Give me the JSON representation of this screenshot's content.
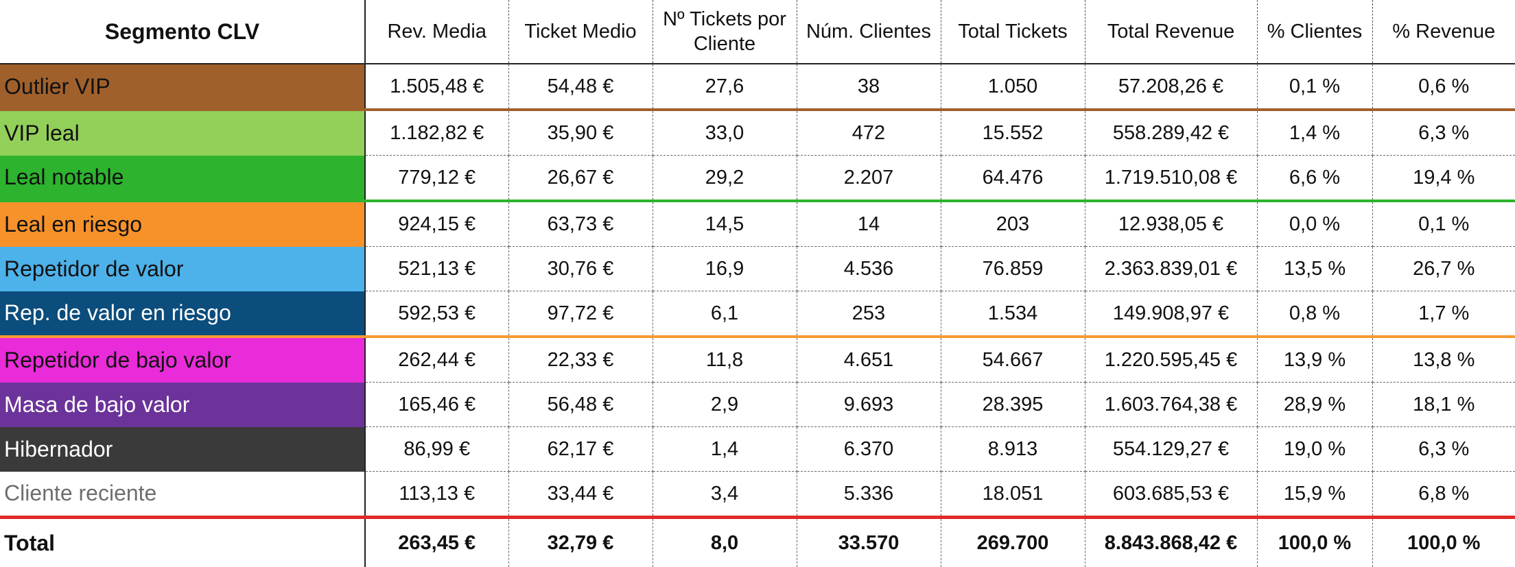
{
  "headers": [
    "Segmento CLV",
    "Rev. Media",
    "Ticket Medio",
    "Nº Tickets por Cliente",
    "Núm. Clientes",
    "Total Tickets",
    "Total Revenue",
    "% Clientes",
    "% Revenue"
  ],
  "rows": [
    {
      "segment": "Outlier VIP",
      "bg": "#a0602c",
      "fg": "#111111",
      "sep": "brown",
      "values": [
        "1.505,48 €",
        "54,48 €",
        "27,6",
        "38",
        "1.050",
        "57.208,26 €",
        "0,1 %",
        "0,6 %"
      ]
    },
    {
      "segment": "VIP leal",
      "bg": "#92d05a",
      "fg": "#111111",
      "sep": "",
      "values": [
        "1.182,82 €",
        "35,90 €",
        "33,0",
        "472",
        "15.552",
        "558.289,42 €",
        "1,4 %",
        "6,3 %"
      ]
    },
    {
      "segment": "Leal notable",
      "bg": "#2db32d",
      "fg": "#111111",
      "sep": "green",
      "values": [
        "779,12 €",
        "26,67 €",
        "29,2",
        "2.207",
        "64.476",
        "1.719.510,08 €",
        "6,6 %",
        "19,4 %"
      ]
    },
    {
      "segment": "Leal en riesgo",
      "bg": "#f7922b",
      "fg": "#111111",
      "sep": "",
      "values": [
        "924,15 €",
        "63,73 €",
        "14,5",
        "14",
        "203",
        "12.938,05 €",
        "0,0 %",
        "0,1 %"
      ]
    },
    {
      "segment": "Repetidor de valor",
      "bg": "#4db1ea",
      "fg": "#111111",
      "sep": "",
      "values": [
        "521,13 €",
        "30,76 €",
        "16,9",
        "4.536",
        "76.859",
        "2.363.839,01 €",
        "13,5 %",
        "26,7 %"
      ]
    },
    {
      "segment": "Rep. de valor en riesgo",
      "bg": "#0b4d7c",
      "fg": "#ffffff",
      "sep": "orange",
      "values": [
        "592,53 €",
        "97,72 €",
        "6,1",
        "253",
        "1.534",
        "149.908,97 €",
        "0,8 %",
        "1,7 %"
      ]
    },
    {
      "segment": "Repetidor de bajo valor",
      "bg": "#ea2bd9",
      "fg": "#111111",
      "sep": "",
      "values": [
        "262,44 €",
        "22,33 €",
        "11,8",
        "4.651",
        "54.667",
        "1.220.595,45 €",
        "13,9 %",
        "13,8 %"
      ]
    },
    {
      "segment": "Masa de bajo valor",
      "bg": "#6c339a",
      "fg": "#ffffff",
      "sep": "",
      "values": [
        "165,46 €",
        "56,48 €",
        "2,9",
        "9.693",
        "28.395",
        "1.603.764,38 €",
        "28,9 %",
        "18,1 %"
      ]
    },
    {
      "segment": "Hibernador",
      "bg": "#3a3a3a",
      "fg": "#ffffff",
      "sep": "",
      "values": [
        "86,99 €",
        "62,17 €",
        "1,4",
        "6.370",
        "8.913",
        "554.129,27 €",
        "19,0 %",
        "6,3 %"
      ]
    },
    {
      "segment": "Cliente reciente",
      "bg": "#ffffff",
      "fg": "#6e6e6e",
      "sep": "red",
      "values": [
        "113,13 €",
        "33,44 €",
        "3,4",
        "5.336",
        "18.051",
        "603.685,53 €",
        "15,9 %",
        "6,8 %"
      ]
    }
  ],
  "total": {
    "segment": "Total",
    "values": [
      "263,45 €",
      "32,79 €",
      "8,0",
      "33.570",
      "269.700",
      "8.843.868,42 €",
      "100,0 %",
      "100,0 %"
    ]
  }
}
